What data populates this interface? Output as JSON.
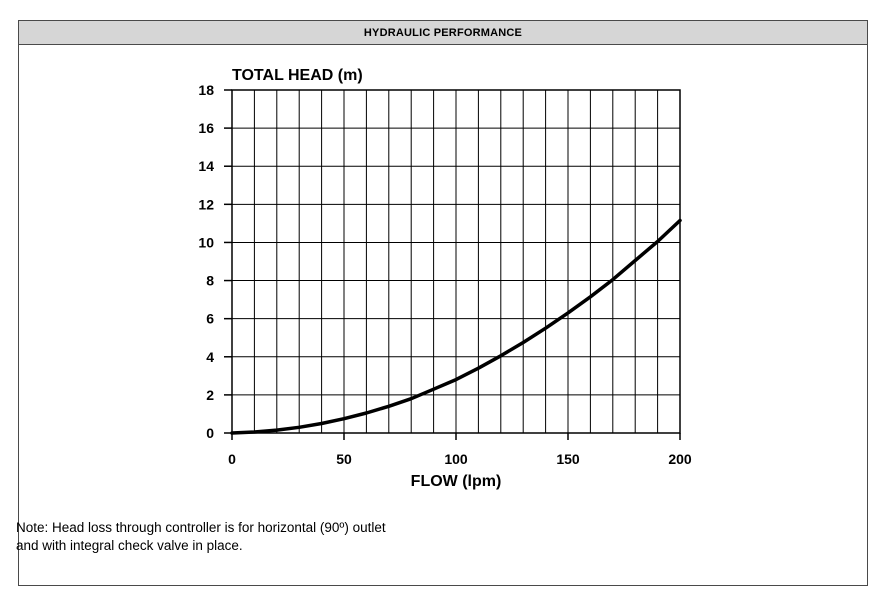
{
  "header": {
    "title": "HYDRAULIC PERFORMANCE"
  },
  "chart_data": {
    "type": "line",
    "ylabel": "TOTAL HEAD (m)",
    "xlabel": "FLOW (lpm)",
    "xlim": [
      0,
      200
    ],
    "ylim": [
      0,
      18
    ],
    "x_ticks": [
      0,
      50,
      100,
      150,
      200
    ],
    "y_ticks": [
      0,
      2,
      4,
      6,
      8,
      10,
      12,
      14,
      16,
      18
    ],
    "grid": true,
    "series": [
      {
        "x": [
          0,
          10,
          20,
          30,
          40,
          50,
          60,
          70,
          80,
          90,
          100,
          110,
          120,
          130,
          140,
          150,
          160,
          170,
          180,
          190,
          200
        ],
        "y": [
          0,
          0.05,
          0.15,
          0.3,
          0.5,
          0.75,
          1.05,
          1.4,
          1.8,
          2.3,
          2.8,
          3.4,
          4.05,
          4.75,
          5.5,
          6.3,
          7.15,
          8.05,
          9.05,
          10.05,
          11.15
        ]
      }
    ]
  },
  "note": {
    "text": "Note: Head loss through controller is for horizontal (90º) outlet\nand with integral check valve in place."
  }
}
